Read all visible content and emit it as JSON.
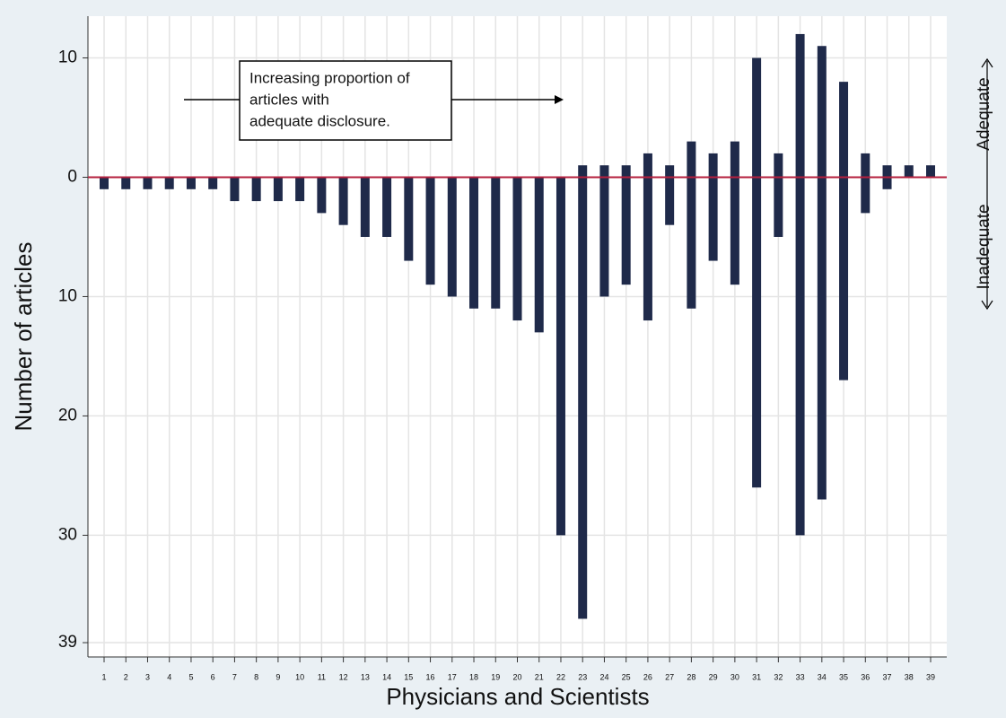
{
  "chart_data": {
    "type": "diverging-bar",
    "y_label": "Number of articles",
    "x_label": "Physicians and Scientists",
    "annotation": [
      "Increasing proportion of",
      "articles with",
      "adequate disclosure."
    ],
    "categories": [
      "1",
      "2",
      "3",
      "4",
      "5",
      "6",
      "7",
      "8",
      "9",
      "10",
      "11",
      "12",
      "13",
      "14",
      "15",
      "16",
      "17",
      "18",
      "19",
      "20",
      "21",
      "22",
      "23",
      "24",
      "25",
      "26",
      "27",
      "28",
      "29",
      "30",
      "31",
      "32",
      "33",
      "34",
      "35",
      "36",
      "37",
      "38",
      "39"
    ],
    "series": [
      {
        "name": "Adequate",
        "color": "#1f2a4a",
        "values": [
          0,
          0,
          0,
          0,
          0,
          0,
          0,
          0,
          0,
          0,
          0,
          0,
          0,
          0,
          0,
          0,
          0,
          0,
          0,
          0,
          0,
          0,
          1,
          1,
          1,
          2,
          1,
          3,
          2,
          3,
          10,
          2,
          12,
          11,
          8,
          2,
          1,
          1,
          1
        ]
      },
      {
        "name": "Inadequate",
        "color": "#1f2a4a",
        "values": [
          -1,
          -1,
          -1,
          -1,
          -1,
          -1,
          -2,
          -2,
          -2,
          -2,
          -3,
          -4,
          -5,
          -5,
          -7,
          -9,
          -10,
          -11,
          -11,
          -12,
          -13,
          -30,
          -37,
          -10,
          -9,
          -12,
          -4,
          -11,
          -7,
          -9,
          -26,
          -5,
          -30,
          -27,
          -17,
          -3,
          -1,
          0,
          0
        ]
      }
    ],
    "ylim": [
      -40.2,
      13.5
    ],
    "yticks": [
      10,
      0,
      {
        "value": -10,
        "label": "10"
      },
      {
        "value": -20,
        "label": "20"
      },
      {
        "value": -30,
        "label": "30"
      },
      {
        "value": -39,
        "label": "39"
      }
    ],
    "grid": true,
    "zero_line_color": "#b5203e"
  }
}
